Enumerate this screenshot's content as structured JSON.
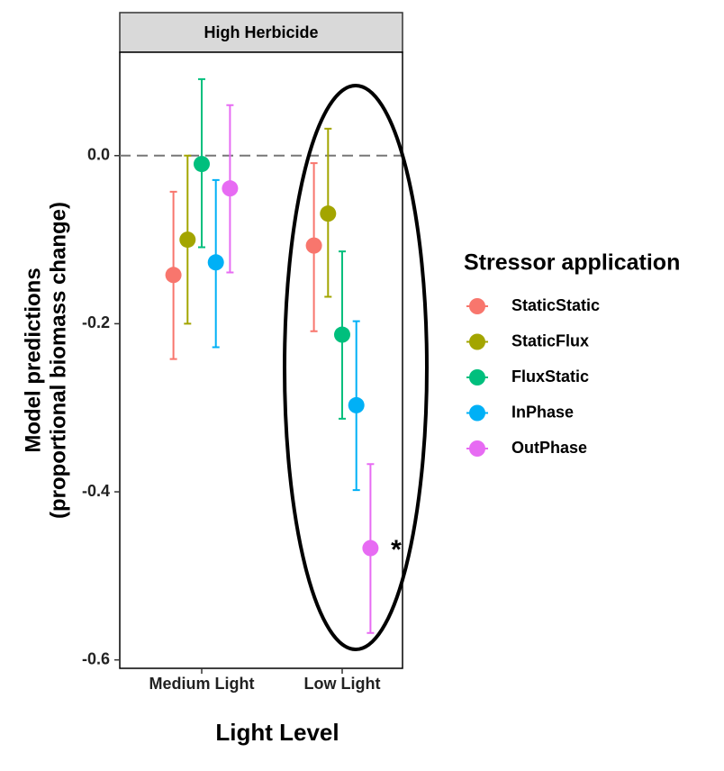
{
  "chart_data": {
    "type": "dotplot",
    "panel_title": "High Herbicide",
    "ylabel": [
      "Model predictions",
      "(proportional biomass change)"
    ],
    "xlabel": "Light Level",
    "legend_title": "Stressor application",
    "categories": [
      "Medium Light",
      "Low Light"
    ],
    "ylim": [
      -0.61,
      0.123
    ],
    "yticks": [
      {
        "value": 0,
        "label": "0.0"
      },
      -0.2,
      -0.4,
      -0.6
    ],
    "hline": 0,
    "annotations": [
      "*"
    ],
    "series": [
      {
        "name": "StaticStatic",
        "color": "#F8766D",
        "values": [
          -0.142,
          -0.107
        ],
        "lower": [
          -0.242,
          -0.209
        ],
        "upper": [
          -0.043,
          -0.009
        ]
      },
      {
        "name": "StaticFlux",
        "color": "#A3A500",
        "values": [
          -0.1,
          -0.069
        ],
        "lower": [
          -0.2,
          -0.168
        ],
        "upper": [
          0.0,
          0.032
        ]
      },
      {
        "name": "FluxStatic",
        "color": "#00BF7D",
        "values": [
          -0.01,
          -0.213
        ],
        "lower": [
          -0.109,
          -0.313
        ],
        "upper": [
          0.091,
          -0.114
        ]
      },
      {
        "name": "InPhase",
        "color": "#00B0F6",
        "values": [
          -0.127,
          -0.297
        ],
        "lower": [
          -0.228,
          -0.398
        ],
        "upper": [
          -0.029,
          -0.197
        ]
      },
      {
        "name": "OutPhase",
        "color": "#E76BF3",
        "values": [
          -0.039,
          -0.467
        ],
        "lower": [
          -0.139,
          -0.568
        ],
        "upper": [
          0.06,
          -0.367
        ]
      }
    ]
  }
}
